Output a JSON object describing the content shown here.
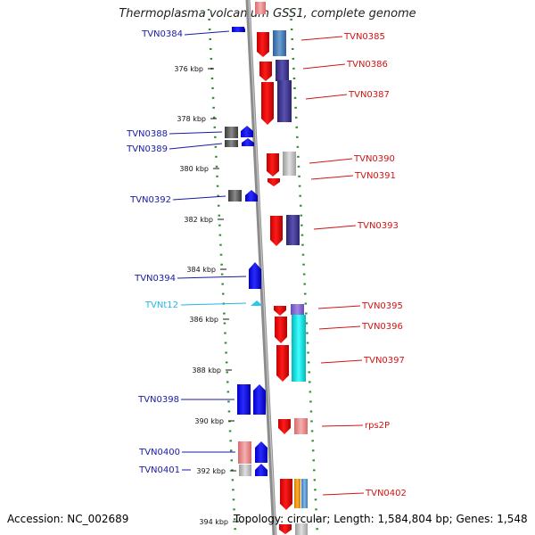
{
  "title": "Thermoplasma volcanium GSS1, complete genome",
  "footer": {
    "accession": "Accession: NC_002689",
    "summary": "Topology: circular; Length: 1,584,804 bp; Genes: 1,548"
  },
  "colors": {
    "left_label": "#1a1aa6",
    "right_label": "#d21414",
    "rna_label": "#22b6e6",
    "scale_dots": "#2e8b2e",
    "strand_line": "#8c8c8c"
  },
  "scale": [
    {
      "label": "376 kbp"
    },
    {
      "label": "378 kbp"
    },
    {
      "label": "380 kbp"
    },
    {
      "label": "382 kbp"
    },
    {
      "label": "384 kbp"
    },
    {
      "label": "386 kbp"
    },
    {
      "label": "388 kbp"
    },
    {
      "label": "390 kbp"
    },
    {
      "label": "392 kbp"
    },
    {
      "label": "394 kbp"
    }
  ],
  "left_genes": [
    {
      "name": "TVN0384"
    },
    {
      "name": "TVN0388"
    },
    {
      "name": "TVN0389"
    },
    {
      "name": "TVN0392"
    },
    {
      "name": "TVN0394"
    },
    {
      "name": "TVNt12",
      "rna": true
    },
    {
      "name": "TVN0398"
    },
    {
      "name": "TVN0400"
    },
    {
      "name": "TVN0401"
    }
  ],
  "right_genes": [
    {
      "name": "TVN0385"
    },
    {
      "name": "TVN0386"
    },
    {
      "name": "TVN0387"
    },
    {
      "name": "TVN0390"
    },
    {
      "name": "TVN0391"
    },
    {
      "name": "TVN0393"
    },
    {
      "name": "TVN0395"
    },
    {
      "name": "TVN0396"
    },
    {
      "name": "TVN0397"
    },
    {
      "name": "rps2P"
    },
    {
      "name": "TVN0402"
    }
  ]
}
